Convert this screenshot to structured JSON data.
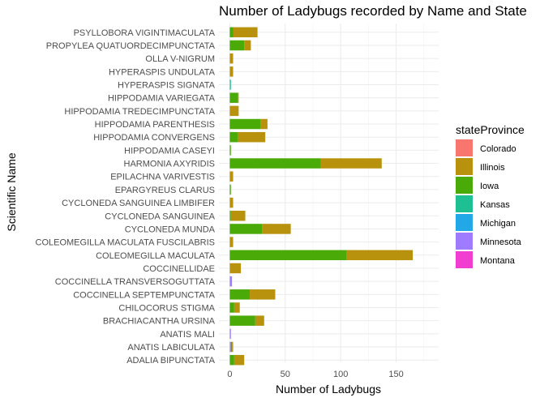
{
  "chart_data": {
    "type": "bar",
    "orientation": "horizontal",
    "stacked": true,
    "title": "Number of Ladybugs recorded by Name and State",
    "xlabel": "Number of Ladybugs",
    "ylabel": "Scientific Name",
    "xlim": [
      0,
      175
    ],
    "xticks": [
      0,
      50,
      100,
      150
    ],
    "grid": true,
    "legend": {
      "title": "stateProvince",
      "position": "right"
    },
    "categories": [
      "ADALIA BIPUNCTATA",
      "ANATIS LABICULATA",
      "ANATIS MALI",
      "BRACHIACANTHA URSINA",
      "CHILOCORUS STIGMA",
      "COCCINELLA SEPTEMPUNCTATA",
      "COCCINELLA TRANSVERSOGUTTATA",
      "COCCINELLIDAE",
      "COLEOMEGILLA MACULATA",
      "COLEOMEGILLA MACULATA FUSCILABRIS",
      "CYCLONEDA MUNDA",
      "CYCLONEDA SANGUINEA",
      "CYCLONEDA SANGUINEA LIMBIFER",
      "EPARGYREUS CLARUS",
      "EPILACHNA VARIVESTIS",
      "HARMONIA AXYRIDIS",
      "HIPPODAMIA CASEYI",
      "HIPPODAMIA CONVERGENS",
      "HIPPODAMIA PARENTHESIS",
      "HIPPODAMIA TREDECIMPUNCTATA",
      "HIPPODAMIA VARIEGATA",
      "HYPERASPIS SIGNATA",
      "HYPERASPIS UNDULATA",
      "OLLA V-NIGRUM",
      "PROPYLEA QUATUORDECIMPUNCTATA",
      "PSYLLOBORA VIGINTIMACULATA"
    ],
    "series": [
      {
        "name": "Colorado",
        "color": "#F8766D",
        "values": [
          0,
          0,
          0,
          0,
          0,
          0,
          0,
          0,
          0,
          0,
          0,
          0,
          0,
          0,
          0,
          0,
          0,
          0,
          0,
          0,
          0,
          0,
          0,
          0,
          0,
          0
        ]
      },
      {
        "name": "Illinois",
        "color": "#B79F00",
        "values": [
          9,
          1,
          0,
          8,
          5,
          23,
          0,
          10,
          60,
          3,
          26,
          13,
          3,
          0,
          3,
          55,
          0,
          25,
          6,
          8,
          1,
          0,
          3,
          3,
          6,
          22
        ]
      },
      {
        "name": "Iowa",
        "color": "#00BA38",
        "values": [
          4,
          1,
          0,
          23,
          4,
          18,
          0,
          0,
          105,
          0,
          29,
          1,
          0,
          1,
          0,
          82,
          1,
          7,
          28,
          0,
          7,
          0,
          0,
          0,
          13,
          3
        ]
      },
      {
        "name": "Kansas",
        "color": "#00BFC4",
        "values": [
          0,
          0,
          0,
          0,
          0,
          0,
          0,
          0,
          0,
          0,
          0,
          0,
          0,
          0,
          0,
          0,
          0,
          0,
          0,
          0,
          0,
          1,
          0,
          0,
          0,
          0
        ]
      },
      {
        "name": "Michigan",
        "color": "#619CFF",
        "values": [
          0,
          0,
          0,
          0,
          0,
          0,
          0,
          0,
          0,
          0,
          0,
          0,
          0,
          0,
          0,
          0,
          0,
          0,
          0,
          0,
          0,
          0,
          0,
          0,
          0,
          0
        ]
      },
      {
        "name": "Minnesota",
        "color": "#A58AFF",
        "values": [
          0,
          1,
          1,
          0,
          0,
          0,
          2,
          0,
          0,
          0,
          0,
          0,
          0,
          0,
          0,
          0,
          0,
          0,
          0,
          0,
          0,
          0,
          0,
          0,
          0,
          0
        ]
      },
      {
        "name": "Montana",
        "color": "#FB61D7",
        "values": [
          0,
          0,
          0,
          0,
          0,
          0,
          0,
          0,
          0,
          0,
          0,
          0,
          0,
          0,
          0,
          0,
          0,
          0,
          0,
          0,
          0,
          0,
          0,
          0,
          0,
          0
        ]
      }
    ],
    "draw_colors": {
      "Colorado": "#F8766D",
      "Illinois": "#B8920C",
      "Iowa": "#4AAA08",
      "Kansas": "#1FBF94",
      "Michigan": "#22A8E6",
      "Minnesota": "#9E7BFF",
      "Montana": "#F23ED0"
    }
  }
}
